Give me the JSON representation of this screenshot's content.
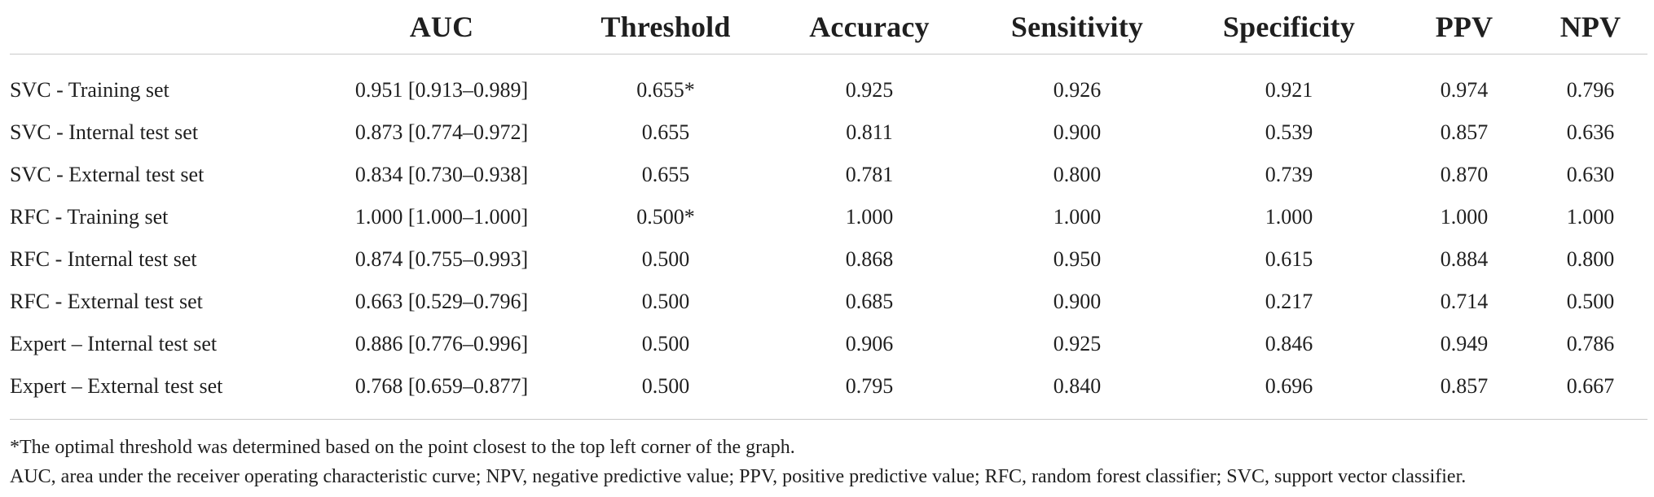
{
  "table": {
    "headers": [
      "",
      "AUC",
      "Threshold",
      "Accuracy",
      "Sensitivity",
      "Specificity",
      "PPV",
      "NPV"
    ],
    "rows": [
      [
        "SVC - Training set",
        "0.951 [0.913–0.989]",
        "0.655*",
        "0.925",
        "0.926",
        "0.921",
        "0.974",
        "0.796"
      ],
      [
        "SVC - Internal test set",
        "0.873 [0.774–0.972]",
        "0.655",
        "0.811",
        "0.900",
        "0.539",
        "0.857",
        "0.636"
      ],
      [
        "SVC - External test set",
        "0.834 [0.730–0.938]",
        "0.655",
        "0.781",
        "0.800",
        "0.739",
        "0.870",
        "0.630"
      ],
      [
        "RFC - Training set",
        "1.000 [1.000–1.000]",
        "0.500*",
        "1.000",
        "1.000",
        "1.000",
        "1.000",
        "1.000"
      ],
      [
        "RFC - Internal test set",
        "0.874 [0.755–0.993]",
        "0.500",
        "0.868",
        "0.950",
        "0.615",
        "0.884",
        "0.800"
      ],
      [
        "RFC - External test set",
        "0.663 [0.529–0.796]",
        "0.500",
        "0.685",
        "0.900",
        "0.217",
        "0.714",
        "0.500"
      ],
      [
        "Expert – Internal test set",
        "0.886 [0.776–0.996]",
        "0.500",
        "0.906",
        "0.925",
        "0.846",
        "0.949",
        "0.786"
      ],
      [
        "Expert – External test set",
        "0.768 [0.659–0.877]",
        "0.500",
        "0.795",
        "0.840",
        "0.696",
        "0.857",
        "0.667"
      ]
    ]
  },
  "footnotes": {
    "note_threshold": "*The optimal threshold was determined based on the point closest to the top left corner of the graph.",
    "abbreviations": "AUC, area under the receiver operating characteristic curve; NPV, negative predictive value; PPV, positive predictive value; RFC, random forest classifier; SVC, support vector classifier."
  }
}
